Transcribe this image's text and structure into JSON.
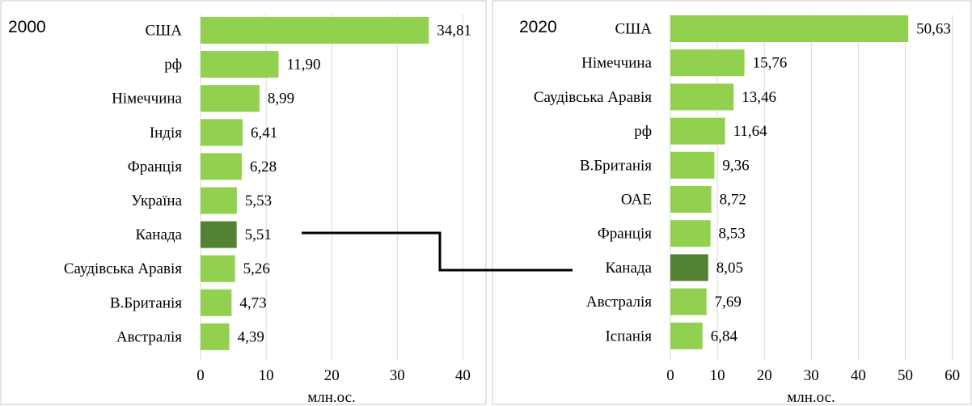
{
  "colors": {
    "bar": "#92d050",
    "highlight": "#548235",
    "connector": "#000000"
  },
  "chart_data": [
    {
      "type": "bar",
      "orientation": "horizontal",
      "title": "2000",
      "xlabel": "млн.ос.",
      "xlim": [
        0,
        40
      ],
      "xticks": [
        0,
        10,
        20,
        30,
        40
      ],
      "grid": true,
      "categories": [
        "США",
        "рф",
        "Німеччина",
        "Індія",
        "Франція",
        "Україна",
        "Канада",
        "Саудівська Аравія",
        "В.Британія",
        "Австралія"
      ],
      "values": [
        34.81,
        11.9,
        8.99,
        6.41,
        6.28,
        5.53,
        5.51,
        5.26,
        4.73,
        4.39
      ],
      "value_labels": [
        "34,81",
        "11,90",
        "8,99",
        "6,41",
        "6,28",
        "5,53",
        "5,51",
        "5,26",
        "4,73",
        "4,39"
      ],
      "highlight": "Канада"
    },
    {
      "type": "bar",
      "orientation": "horizontal",
      "title": "2020",
      "xlabel": "млн.ос.",
      "xlim": [
        0,
        60
      ],
      "xticks": [
        0,
        10,
        20,
        30,
        40,
        50,
        60
      ],
      "grid": true,
      "categories": [
        "США",
        "Німеччина",
        "Саудівська Аравія",
        "рф",
        "В.Британія",
        "ОАЕ",
        "Франція",
        "Канада",
        "Австралія",
        "Іспанія"
      ],
      "values": [
        50.63,
        15.76,
        13.46,
        11.64,
        9.36,
        8.72,
        8.53,
        8.05,
        7.69,
        6.84
      ],
      "value_labels": [
        "50,63",
        "15,76",
        "13,46",
        "11,64",
        "9,36",
        "8,72",
        "8,53",
        "8,05",
        "7,69",
        "6,84"
      ],
      "highlight": "Канада"
    }
  ]
}
